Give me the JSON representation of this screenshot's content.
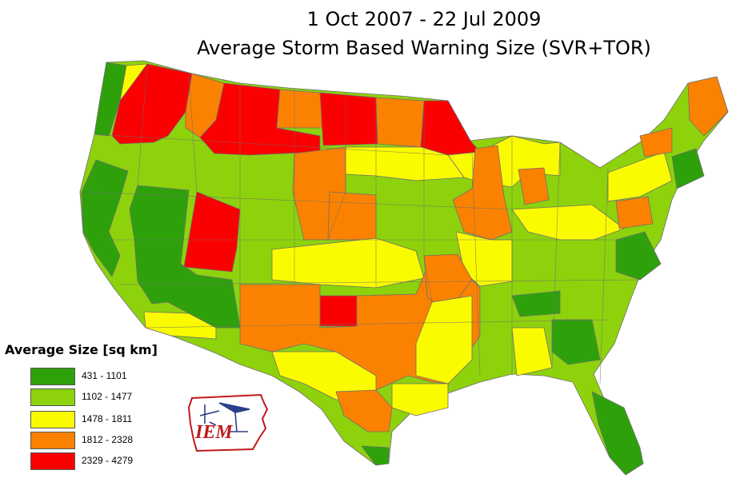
{
  "title": {
    "line1": "1 Oct 2007 - 22 Jul 2009",
    "line2": "Average Storm Based Warning Size (SVR+TOR)"
  },
  "legend": {
    "title": "Average Size [sq km]",
    "items": [
      {
        "label": "431 - 1101",
        "color": "#2ea10a"
      },
      {
        "label": "1102 - 1477",
        "color": "#8ed20c"
      },
      {
        "label": "1478 - 1811",
        "color": "#fbfb00"
      },
      {
        "label": "1812 - 2328",
        "color": "#fb8200"
      },
      {
        "label": "2329 - 4279",
        "color": "#fb0000"
      }
    ]
  },
  "logo": {
    "text": "IEM"
  },
  "colors": {
    "class1": "#2ea10a",
    "class2": "#8ed20c",
    "class3": "#fbfb00",
    "class4": "#fb8200",
    "class5": "#fb0000",
    "boundary": "#6e6e6e",
    "logo_red": "#c0191c",
    "logo_blue": "#2c3f8a"
  }
}
